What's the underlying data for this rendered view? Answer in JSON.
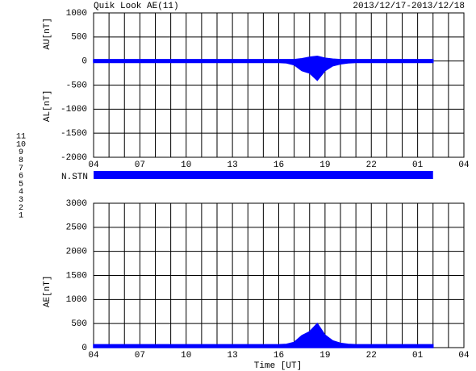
{
  "title": "Quik Look AE(11)",
  "date_range": "2013/12/17-2013/12/18",
  "station_bar_label": "N.STN",
  "station_legend": [
    {
      "label": "11",
      "color": "#00e0e0"
    },
    {
      "label": "10",
      "color": "#ff00ff"
    },
    {
      "label": "9",
      "color": "#3030ff"
    },
    {
      "label": "8",
      "color": "#ffff00"
    },
    {
      "label": "7",
      "color": "#80ff80"
    },
    {
      "label": "6",
      "color": "#ff0000"
    },
    {
      "label": "5",
      "color": "#f0f0f0"
    },
    {
      "label": "4",
      "color": "#c0c0c0"
    },
    {
      "label": "3",
      "color": "#00a0a0"
    },
    {
      "label": "2",
      "color": "#a000a0"
    },
    {
      "label": "1",
      "color": "#0000c0"
    }
  ],
  "chart_data": [
    {
      "type": "area",
      "y_labels": [
        "AU[nT]",
        "AL[nT]"
      ],
      "x": [
        4,
        4.5,
        5,
        5.5,
        6,
        6.5,
        7,
        7.5,
        8,
        8.5,
        9,
        9.5,
        10,
        10.5,
        11,
        11.5,
        12,
        12.5,
        13,
        13.5,
        14,
        14.5,
        15,
        15.5,
        16,
        16.5,
        17,
        17.5,
        18,
        18.5,
        19,
        19.5,
        20,
        20.5,
        21,
        21.5,
        22,
        22.5,
        23,
        23.5,
        24,
        24.5,
        25,
        25.5,
        26
      ],
      "series": [
        {
          "color": "#0000ff",
          "values": [
            30,
            30,
            30,
            30,
            30,
            30,
            30,
            30,
            30,
            30,
            30,
            30,
            30,
            30,
            30,
            30,
            30,
            30,
            30,
            30,
            30,
            30,
            30,
            30,
            30,
            30,
            30,
            50,
            80,
            100,
            60,
            40,
            30,
            30,
            30,
            30,
            30,
            30,
            30,
            30,
            30,
            30,
            30,
            30,
            30
          ]
        },
        {
          "color": "#0000ff",
          "values": [
            -30,
            -30,
            -30,
            -30,
            -30,
            -30,
            -30,
            -30,
            -30,
            -30,
            -30,
            -30,
            -30,
            -30,
            -30,
            -30,
            -30,
            -30,
            -30,
            -30,
            -30,
            -30,
            -30,
            -30,
            -30,
            -40,
            -80,
            -200,
            -250,
            -400,
            -200,
            -100,
            -60,
            -40,
            -30,
            -30,
            -30,
            -30,
            -30,
            -30,
            -30,
            -30,
            -30,
            -30,
            -30
          ]
        }
      ],
      "xlim": [
        4,
        28
      ],
      "xticks": [
        {
          "value": 4,
          "label": "04"
        },
        {
          "value": 7,
          "label": "07"
        },
        10,
        13,
        16,
        19,
        22,
        {
          "value": 25,
          "label": "01"
        },
        {
          "value": 28,
          "label": "04"
        }
      ],
      "ylim": [
        -2000,
        1000
      ],
      "yticks": [
        1000,
        500,
        0,
        -500,
        -1000,
        -1500,
        -2000
      ],
      "grid": true
    },
    {
      "type": "area",
      "y_label": "AE[nT]",
      "x_label": "Time [UT]",
      "x": [
        4,
        4.5,
        5,
        5.5,
        6,
        6.5,
        7,
        7.5,
        8,
        8.5,
        9,
        9.5,
        10,
        10.5,
        11,
        11.5,
        12,
        12.5,
        13,
        13.5,
        14,
        14.5,
        15,
        15.5,
        16,
        16.5,
        17,
        17.5,
        18,
        18.5,
        19,
        19.5,
        20,
        20.5,
        21,
        21.5,
        22,
        22.5,
        23,
        23.5,
        24,
        24.5,
        25,
        25.5,
        26
      ],
      "series": [
        {
          "color": "#0000ff",
          "values": [
            60,
            60,
            60,
            60,
            60,
            60,
            60,
            60,
            60,
            60,
            60,
            60,
            60,
            60,
            60,
            60,
            60,
            60,
            60,
            60,
            60,
            60,
            60,
            60,
            60,
            70,
            110,
            250,
            330,
            500,
            260,
            140,
            90,
            70,
            60,
            60,
            60,
            60,
            60,
            60,
            60,
            60,
            60,
            60,
            60
          ]
        }
      ],
      "xlim": [
        4,
        28
      ],
      "xticks": [
        {
          "value": 4,
          "label": "04"
        },
        {
          "value": 7,
          "label": "07"
        },
        10,
        13,
        16,
        19,
        22,
        {
          "value": 25,
          "label": "01"
        },
        {
          "value": 28,
          "label": "04"
        }
      ],
      "ylim": [
        0,
        3000
      ],
      "yticks": [
        3000,
        2500,
        2000,
        1500,
        1000,
        500,
        0
      ],
      "grid": true
    }
  ]
}
